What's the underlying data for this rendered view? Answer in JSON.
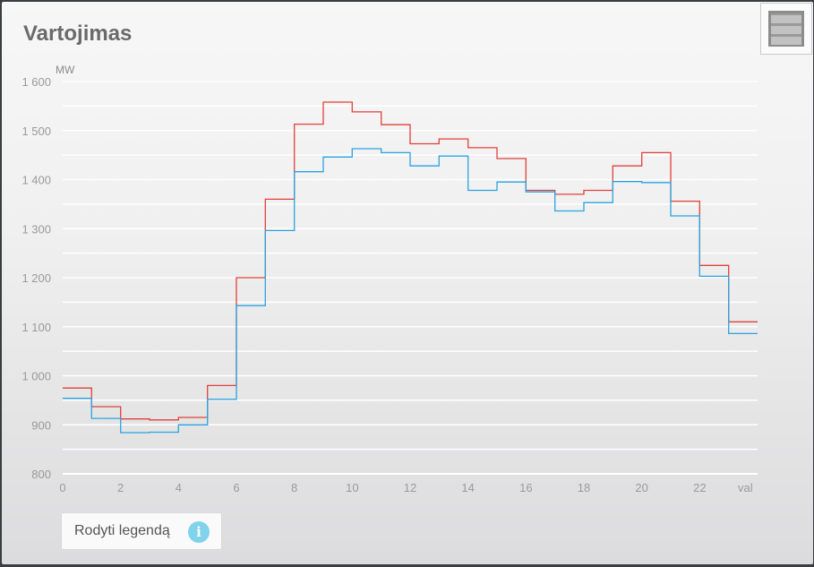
{
  "title": "Vartojimas",
  "menu_icon": "hamburger-menu-icon",
  "legend_button": {
    "label": "Rodyti legendą",
    "icon": "info-icon",
    "icon_glyph": "i"
  },
  "chart_data": {
    "type": "line",
    "step": true,
    "ylabel": "MW",
    "xlabel": "val",
    "ylim": [
      800,
      1600
    ],
    "xlim": [
      0,
      24
    ],
    "yticks": [
      "800",
      "900",
      "1 000",
      "1 100",
      "1 200",
      "1 300",
      "1 400",
      "1 500",
      "1 600"
    ],
    "xticks": [
      "0",
      "2",
      "4",
      "6",
      "8",
      "10",
      "12",
      "14",
      "16",
      "18",
      "20",
      "22"
    ],
    "grid": true,
    "x": [
      0,
      1,
      2,
      3,
      4,
      5,
      6,
      7,
      8,
      9,
      10,
      11,
      12,
      13,
      14,
      15,
      16,
      17,
      18,
      19,
      20,
      21,
      22,
      23
    ],
    "series": [
      {
        "color": "#e0413b",
        "values": [
          975,
          937,
          912,
          910,
          915,
          980,
          1200,
          1360,
          1513,
          1558,
          1538,
          1512,
          1473,
          1483,
          1465,
          1443,
          1378,
          1370,
          1378,
          1428,
          1455,
          1356,
          1225,
          1110
        ]
      },
      {
        "color": "#2aa3e0",
        "values": [
          954,
          913,
          884,
          885,
          900,
          952,
          1143,
          1296,
          1416,
          1446,
          1463,
          1455,
          1428,
          1448,
          1378,
          1395,
          1375,
          1336,
          1353,
          1396,
          1394,
          1326,
          1203,
          1086
        ]
      }
    ]
  }
}
